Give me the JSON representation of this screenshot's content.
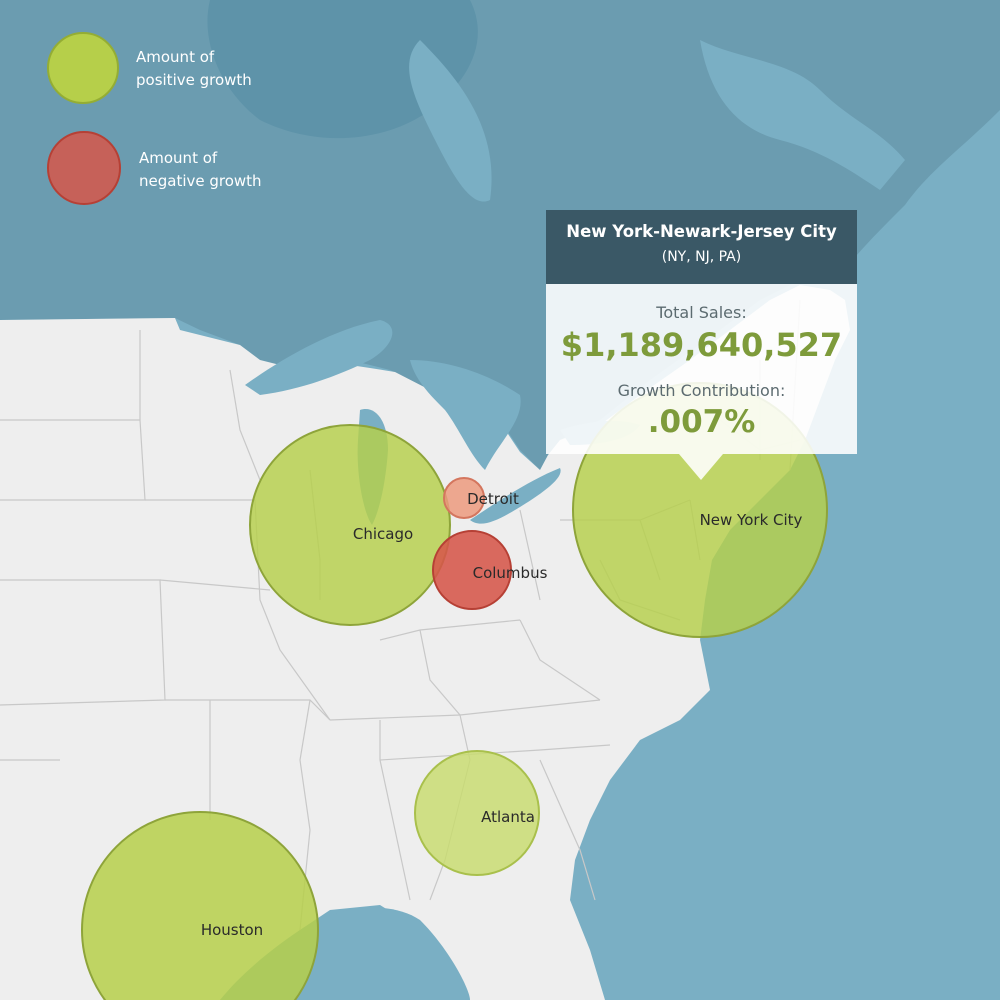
{
  "legend": {
    "positive_label_line1": "Amount of",
    "positive_label_line2": "positive growth",
    "negative_label_line1": "Amount of",
    "negative_label_line2": "negative growth"
  },
  "colors": {
    "water": "#7aafc4",
    "deep_water": "#5e93a9",
    "land": "#eeeeee",
    "canada_land": "#6b9cb0",
    "positive": "#b6cf4a",
    "negative": "#d6574a",
    "tooltip_header": "#3a5866",
    "tooltip_value": "#7e9b3b"
  },
  "cities": [
    {
      "name": "Chicago",
      "growth": "positive"
    },
    {
      "name": "Detroit",
      "growth": "negative"
    },
    {
      "name": "Columbus",
      "growth": "negative"
    },
    {
      "name": "New York City",
      "growth": "positive"
    },
    {
      "name": "Atlanta",
      "growth": "positive"
    },
    {
      "name": "Houston",
      "growth": "positive"
    }
  ],
  "tooltip": {
    "title": "New York-Newark-Jersey City",
    "subtitle": "(NY, NJ, PA)",
    "total_sales_label": "Total Sales:",
    "total_sales_value": "$1,189,640,527",
    "growth_label": "Growth Contribution:",
    "growth_value": ".007%"
  }
}
